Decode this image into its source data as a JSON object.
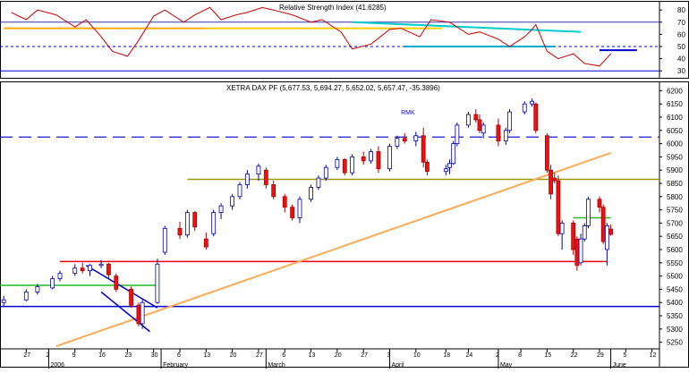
{
  "chart_data": [
    {
      "type": "line",
      "title": "Relative Strength Index (41.6285)",
      "ylim": [
        25,
        86
      ],
      "y_ticks": [
        30,
        40,
        50,
        60,
        70,
        80
      ],
      "series": [
        {
          "x": [
            "2005-12-23",
            "2005-12-27",
            "2005-12-30",
            "2006-01-04",
            "2006-01-09",
            "2006-01-12",
            "2006-01-16",
            "2006-01-19",
            "2006-01-23",
            "2006-01-26",
            "2006-01-30",
            "2006-02-02",
            "2006-02-07",
            "2006-02-10",
            "2006-02-14",
            "2006-02-17",
            "2006-02-21",
            "2006-02-24",
            "2006-02-28",
            "2006-03-03",
            "2006-03-08",
            "2006-03-13",
            "2006-03-16",
            "2006-03-21",
            "2006-03-24",
            "2006-03-29",
            "2006-04-03",
            "2006-04-06",
            "2006-04-11",
            "2006-04-14",
            "2006-04-19",
            "2006-04-24",
            "2006-04-27",
            "2006-05-02",
            "2006-05-05",
            "2006-05-09",
            "2006-05-11",
            "2006-05-12",
            "2006-05-15",
            "2006-05-18",
            "2006-05-22",
            "2006-05-25",
            "2006-05-29",
            "2006-06-01"
          ],
          "values": [
            78,
            72,
            80,
            76,
            66,
            72,
            58,
            46,
            42,
            55,
            75,
            80,
            70,
            76,
            82,
            72,
            76,
            78,
            82,
            80,
            76,
            70,
            72,
            62,
            48,
            52,
            64,
            65,
            58,
            72,
            70,
            60,
            62,
            56,
            50,
            58,
            64,
            68,
            46,
            40,
            44,
            36,
            34,
            44
          ]
        }
      ],
      "reference_levels": [
        {
          "value": 50,
          "style": "dashed",
          "color": "#0000cc"
        },
        {
          "value": 70,
          "style": "solid",
          "color": "#3333aa"
        },
        {
          "value": 30,
          "style": "solid",
          "color": "#0000cc"
        }
      ],
      "trend_lines": [
        {
          "x": [
            "2005-12-21",
            "2006-02-13"
          ],
          "y": [
            65,
            65
          ],
          "color": "#ffaa00"
        },
        {
          "x": [
            "2006-02-13",
            "2006-04-17"
          ],
          "y": [
            65,
            65
          ],
          "color": "#ffcc00"
        },
        {
          "x": [
            "2006-03-24",
            "2006-05-24"
          ],
          "y": [
            70,
            62
          ],
          "color": "#00cccc"
        },
        {
          "x": [
            "2006-04-07",
            "2006-05-17"
          ],
          "y": [
            50,
            50
          ],
          "color": "#00aacc"
        },
        {
          "x": [
            "2006-05-29",
            "2006-06-08"
          ],
          "y": [
            47,
            47
          ],
          "color": "#0000cc"
        }
      ]
    },
    {
      "type": "candlestick",
      "title": "XETRA DAX PF (5,677.53, 5,694.27, 5,652.02, 5,657.47, -35.3896)",
      "ylim": [
        5225,
        6225
      ],
      "y_ticks": [
        5250,
        5300,
        5350,
        5400,
        5450,
        5500,
        5550,
        5600,
        5650,
        5700,
        5750,
        5800,
        5850,
        5900,
        5950,
        6000,
        6050,
        6100,
        6150,
        6200
      ],
      "x_range": [
        "2005-12-20",
        "2006-06-14"
      ],
      "x_tick_labels": [
        "27",
        "2",
        "9",
        "16",
        "23",
        "30",
        "6",
        "13",
        "20",
        "27",
        "6",
        "13",
        "20",
        "27",
        "3",
        "10",
        "18",
        "24",
        "2",
        "8",
        "15",
        "22",
        "29",
        "5",
        "12"
      ],
      "x_month_labels": [
        "2006",
        "February",
        "March",
        "April",
        "May",
        "June"
      ],
      "annotations": [
        "RMK"
      ],
      "candles": [
        {
          "t": "2005-12-21",
          "o": 5400,
          "h": 5425,
          "l": 5385,
          "c": 5410
        },
        {
          "t": "2005-12-27",
          "o": 5410,
          "h": 5450,
          "l": 5405,
          "c": 5440
        },
        {
          "t": "2005-12-30",
          "o": 5440,
          "h": 5470,
          "l": 5430,
          "c": 5460
        },
        {
          "t": "2006-01-03",
          "o": 5455,
          "h": 5500,
          "l": 5450,
          "c": 5490
        },
        {
          "t": "2006-01-05",
          "o": 5490,
          "h": 5520,
          "l": 5480,
          "c": 5510
        },
        {
          "t": "2006-01-09",
          "o": 5510,
          "h": 5545,
          "l": 5500,
          "c": 5530
        },
        {
          "t": "2006-01-11",
          "o": 5530,
          "h": 5550,
          "l": 5510,
          "c": 5520
        },
        {
          "t": "2006-01-13",
          "o": 5520,
          "h": 5545,
          "l": 5500,
          "c": 5540
        },
        {
          "t": "2006-01-16",
          "o": 5540,
          "h": 5560,
          "l": 5530,
          "c": 5545
        },
        {
          "t": "2006-01-18",
          "o": 5545,
          "h": 5550,
          "l": 5490,
          "c": 5505
        },
        {
          "t": "2006-01-20",
          "o": 5500,
          "h": 5510,
          "l": 5440,
          "c": 5450
        },
        {
          "t": "2006-01-24",
          "o": 5450,
          "h": 5460,
          "l": 5380,
          "c": 5390
        },
        {
          "t": "2006-01-26",
          "o": 5390,
          "h": 5400,
          "l": 5310,
          "c": 5320
        },
        {
          "t": "2006-01-27",
          "o": 5320,
          "h": 5410,
          "l": 5300,
          "c": 5400
        },
        {
          "t": "2006-01-31",
          "o": 5400,
          "h": 5565,
          "l": 5395,
          "c": 5545
        },
        {
          "t": "2006-02-02",
          "o": 5590,
          "h": 5690,
          "l": 5580,
          "c": 5680
        },
        {
          "t": "2006-02-06",
          "o": 5680,
          "h": 5705,
          "l": 5640,
          "c": 5655
        },
        {
          "t": "2006-02-08",
          "o": 5655,
          "h": 5750,
          "l": 5645,
          "c": 5740
        },
        {
          "t": "2006-02-10",
          "o": 5740,
          "h": 5745,
          "l": 5670,
          "c": 5685
        },
        {
          "t": "2006-02-13",
          "o": 5640,
          "h": 5665,
          "l": 5600,
          "c": 5610
        },
        {
          "t": "2006-02-15",
          "o": 5660,
          "h": 5750,
          "l": 5650,
          "c": 5740
        },
        {
          "t": "2006-02-17",
          "o": 5740,
          "h": 5775,
          "l": 5715,
          "c": 5765
        },
        {
          "t": "2006-02-20",
          "o": 5765,
          "h": 5810,
          "l": 5750,
          "c": 5800
        },
        {
          "t": "2006-02-22",
          "o": 5800,
          "h": 5855,
          "l": 5790,
          "c": 5845
        },
        {
          "t": "2006-02-24",
          "o": 5845,
          "h": 5900,
          "l": 5830,
          "c": 5885
        },
        {
          "t": "2006-02-27",
          "o": 5885,
          "h": 5925,
          "l": 5860,
          "c": 5915
        },
        {
          "t": "2006-03-01",
          "o": 5900,
          "h": 5910,
          "l": 5830,
          "c": 5845
        },
        {
          "t": "2006-03-03",
          "o": 5845,
          "h": 5860,
          "l": 5790,
          "c": 5800
        },
        {
          "t": "2006-03-06",
          "o": 5800,
          "h": 5810,
          "l": 5740,
          "c": 5760
        },
        {
          "t": "2006-03-08",
          "o": 5760,
          "h": 5770,
          "l": 5710,
          "c": 5720
        },
        {
          "t": "2006-03-10",
          "o": 5720,
          "h": 5800,
          "l": 5700,
          "c": 5790
        },
        {
          "t": "2006-03-13",
          "o": 5790,
          "h": 5845,
          "l": 5780,
          "c": 5835
        },
        {
          "t": "2006-03-15",
          "o": 5835,
          "h": 5880,
          "l": 5825,
          "c": 5870
        },
        {
          "t": "2006-03-17",
          "o": 5870,
          "h": 5920,
          "l": 5860,
          "c": 5910
        },
        {
          "t": "2006-03-20",
          "o": 5910,
          "h": 5950,
          "l": 5900,
          "c": 5940
        },
        {
          "t": "2006-03-22",
          "o": 5940,
          "h": 5945,
          "l": 5880,
          "c": 5890
        },
        {
          "t": "2006-03-24",
          "o": 5890,
          "h": 5960,
          "l": 5880,
          "c": 5950
        },
        {
          "t": "2006-03-27",
          "o": 5950,
          "h": 5970,
          "l": 5920,
          "c": 5935
        },
        {
          "t": "2006-03-29",
          "o": 5935,
          "h": 5980,
          "l": 5925,
          "c": 5970
        },
        {
          "t": "2006-03-31",
          "o": 5970,
          "h": 5990,
          "l": 5890,
          "c": 5905
        },
        {
          "t": "2006-04-03",
          "o": 5905,
          "h": 6000,
          "l": 5895,
          "c": 5990
        },
        {
          "t": "2006-04-05",
          "o": 5990,
          "h": 6030,
          "l": 5980,
          "c": 6020
        },
        {
          "t": "2006-04-07",
          "o": 6020,
          "h": 6040,
          "l": 6000,
          "c": 6010
        },
        {
          "t": "2006-04-10",
          "o": 6010,
          "h": 6045,
          "l": 5990,
          "c": 6030
        },
        {
          "t": "2006-04-12",
          "o": 6030,
          "h": 6060,
          "l": 5910,
          "c": 5930
        },
        {
          "t": "2006-04-13",
          "o": 5930,
          "h": 5940,
          "l": 5880,
          "c": 5895
        },
        {
          "t": "2006-04-18",
          "o": 5895,
          "h": 5920,
          "l": 5880,
          "c": 5905
        },
        {
          "t": "2006-04-19",
          "o": 5910,
          "h": 5940,
          "l": 5885,
          "c": 5925
        },
        {
          "t": "2006-04-20",
          "o": 5925,
          "h": 6010,
          "l": 5920,
          "c": 6000
        },
        {
          "t": "2006-04-21",
          "o": 6000,
          "h": 6080,
          "l": 5990,
          "c": 6070
        },
        {
          "t": "2006-04-24",
          "o": 6070,
          "h": 6120,
          "l": 6060,
          "c": 6110
        },
        {
          "t": "2006-04-26",
          "o": 6110,
          "h": 6130,
          "l": 6080,
          "c": 6090
        },
        {
          "t": "2006-04-27",
          "o": 6090,
          "h": 6110,
          "l": 6040,
          "c": 6050
        },
        {
          "t": "2006-04-28",
          "o": 6040,
          "h": 6080,
          "l": 6020,
          "c": 6070
        },
        {
          "t": "2006-05-02",
          "o": 6070,
          "h": 6095,
          "l": 5990,
          "c": 6010
        },
        {
          "t": "2006-05-04",
          "o": 6010,
          "h": 6060,
          "l": 5995,
          "c": 6050
        },
        {
          "t": "2006-05-05",
          "o": 6050,
          "h": 6130,
          "l": 6040,
          "c": 6120
        },
        {
          "t": "2006-05-09",
          "o": 6120,
          "h": 6160,
          "l": 6110,
          "c": 6150
        },
        {
          "t": "2006-05-11",
          "o": 6150,
          "h": 6170,
          "l": 6140,
          "c": 6160
        },
        {
          "t": "2006-05-12",
          "o": 6150,
          "h": 6155,
          "l": 6040,
          "c": 6050
        },
        {
          "t": "2006-05-15",
          "o": 6030,
          "h": 6040,
          "l": 5890,
          "c": 5900
        },
        {
          "t": "2006-05-16",
          "o": 5900,
          "h": 5920,
          "l": 5790,
          "c": 5810
        },
        {
          "t": "2006-05-17",
          "o": 5870,
          "h": 5890,
          "l": 5850,
          "c": 5860
        },
        {
          "t": "2006-05-18",
          "o": 5860,
          "h": 5880,
          "l": 5650,
          "c": 5660
        },
        {
          "t": "2006-05-19",
          "o": 5660,
          "h": 5710,
          "l": 5600,
          "c": 5700
        },
        {
          "t": "2006-05-22",
          "o": 5700,
          "h": 5710,
          "l": 5580,
          "c": 5600
        },
        {
          "t": "2006-05-23",
          "o": 5640,
          "h": 5650,
          "l": 5520,
          "c": 5540
        },
        {
          "t": "2006-05-24",
          "o": 5550,
          "h": 5660,
          "l": 5540,
          "c": 5640
        },
        {
          "t": "2006-05-25",
          "o": 5640,
          "h": 5700,
          "l": 5630,
          "c": 5690
        },
        {
          "t": "2006-05-26",
          "o": 5690,
          "h": 5800,
          "l": 5680,
          "c": 5790
        },
        {
          "t": "2006-05-29",
          "o": 5790,
          "h": 5800,
          "l": 5740,
          "c": 5760
        },
        {
          "t": "2006-05-30",
          "o": 5760,
          "h": 5770,
          "l": 5620,
          "c": 5630
        },
        {
          "t": "2006-05-31",
          "o": 5600,
          "h": 5700,
          "l": 5540,
          "c": 5690
        },
        {
          "t": "2006-06-01",
          "o": 5677.53,
          "h": 5694.27,
          "l": 5652.02,
          "c": 5657.47
        }
      ],
      "trend_lines": [
        {
          "x": [
            "2005-12-20",
            "2006-06-14"
          ],
          "y": [
            6025,
            6025
          ],
          "style": "dashed",
          "color": "#0000cc"
        },
        {
          "x": [
            "2005-12-20",
            "2006-06-14"
          ],
          "y": [
            5385,
            5385
          ],
          "style": "solid",
          "color": "#0000cc"
        },
        {
          "x": [
            "2006-01-05",
            "2006-05-31"
          ],
          "y": [
            5555,
            5555
          ],
          "style": "solid",
          "color": "#ee0000"
        },
        {
          "x": [
            "2006-02-08",
            "2006-06-14"
          ],
          "y": [
            5865,
            5865
          ],
          "style": "solid",
          "color": "#999900"
        },
        {
          "x": [
            "2006-05-22",
            "2006-06-01"
          ],
          "y": [
            5720,
            5720
          ],
          "style": "solid",
          "color": "#22bb22"
        },
        {
          "x": [
            "2005-12-20",
            "2006-01-31"
          ],
          "y": [
            5465,
            5465
          ],
          "style": "solid",
          "color": "#22bb22"
        },
        {
          "x": [
            "2006-01-04",
            "2006-06-01"
          ],
          "y": [
            5235,
            5965
          ],
          "style": "solid",
          "color": "#ffaa55"
        },
        {
          "x": [
            "2006-01-12",
            "2006-01-31"
          ],
          "y": [
            5540,
            5380
          ],
          "style": "solid",
          "color": "#0000cc"
        },
        {
          "x": [
            "2006-01-16",
            "2006-01-29"
          ],
          "y": [
            5440,
            5290
          ],
          "style": "solid",
          "color": "#0000cc"
        }
      ]
    }
  ]
}
